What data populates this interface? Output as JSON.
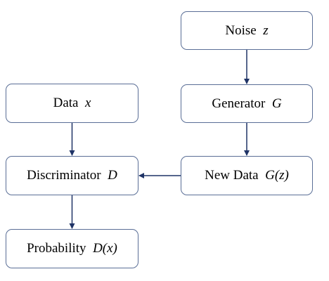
{
  "nodes": {
    "noise": {
      "label": "Noise",
      "var": "z"
    },
    "generator": {
      "label": "Generator",
      "var": "G"
    },
    "new_data": {
      "label": "New Data",
      "var": "G(z)"
    },
    "data": {
      "label": "Data",
      "var": "x"
    },
    "discriminator": {
      "label": "Discriminator",
      "var": "D"
    },
    "probability": {
      "label": "Probability",
      "var": "D(x)"
    }
  },
  "edges": [
    {
      "from": "noise",
      "to": "generator"
    },
    {
      "from": "generator",
      "to": "new_data"
    },
    {
      "from": "new_data",
      "to": "discriminator"
    },
    {
      "from": "data",
      "to": "discriminator"
    },
    {
      "from": "discriminator",
      "to": "probability"
    }
  ],
  "colors": {
    "border": "#5a6e96",
    "arrow": "#1f3366"
  }
}
